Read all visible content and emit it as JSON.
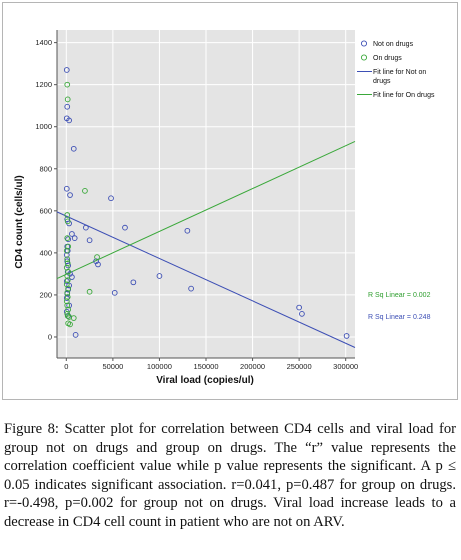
{
  "chart_data": {
    "type": "scatter",
    "xlabel": "Viral load (copies/ul)",
    "ylabel": "CD4 count (cells/ul)",
    "xlim": [
      -10000,
      310000
    ],
    "ylim": [
      -100,
      1460
    ],
    "xticks": [
      0,
      50000,
      100000,
      150000,
      200000,
      250000,
      300000
    ],
    "xtick_labels": [
      "0",
      "50000",
      "100000",
      "150000",
      "200000",
      "250000",
      "300000"
    ],
    "yticks": [
      0,
      200,
      400,
      600,
      800,
      1000,
      1200,
      1400
    ],
    "ytick_labels": [
      "0",
      "200",
      "400",
      "600",
      "800",
      "1000",
      "1200",
      "1400"
    ],
    "grid": true,
    "legend": "right",
    "series": [
      {
        "name": "Not on drugs",
        "color": "#3d4fb5",
        "points": [
          [
            500,
            1270
          ],
          [
            1000,
            1095
          ],
          [
            500,
            1040
          ],
          [
            3000,
            1030
          ],
          [
            8000,
            895
          ],
          [
            500,
            705
          ],
          [
            4000,
            675
          ],
          [
            1000,
            560
          ],
          [
            3000,
            540
          ],
          [
            6000,
            490
          ],
          [
            9000,
            470
          ],
          [
            2000,
            465
          ],
          [
            1000,
            430
          ],
          [
            1500,
            410
          ],
          [
            500,
            390
          ],
          [
            1000,
            360
          ],
          [
            2000,
            340
          ],
          [
            1500,
            310
          ],
          [
            4000,
            300
          ],
          [
            6000,
            285
          ],
          [
            500,
            265
          ],
          [
            3000,
            245
          ],
          [
            2000,
            225
          ],
          [
            1000,
            205
          ],
          [
            500,
            185
          ],
          [
            3000,
            150
          ],
          [
            500,
            120
          ],
          [
            2000,
            100
          ],
          [
            10000,
            10
          ],
          [
            21000,
            520
          ],
          [
            25000,
            460
          ],
          [
            32000,
            360
          ],
          [
            34000,
            345
          ],
          [
            48000,
            660
          ],
          [
            52000,
            210
          ],
          [
            63000,
            520
          ],
          [
            72000,
            260
          ],
          [
            100000,
            290
          ],
          [
            130000,
            505
          ],
          [
            134000,
            230
          ],
          [
            250000,
            140
          ],
          [
            253000,
            110
          ],
          [
            301000,
            5
          ]
        ],
        "fit_line": {
          "x": [
            -10000,
            310000
          ],
          "y": [
            595,
            -50
          ]
        },
        "r_sq_label": "R Sq Linear = 0.248"
      },
      {
        "name": "On drugs",
        "color": "#3aa83a",
        "points": [
          [
            1000,
            1200
          ],
          [
            1500,
            1130
          ],
          [
            1000,
            580
          ],
          [
            1500,
            550
          ],
          [
            1000,
            470
          ],
          [
            2000,
            430
          ],
          [
            500,
            410
          ],
          [
            1000,
            370
          ],
          [
            1500,
            350
          ],
          [
            500,
            330
          ],
          [
            2000,
            310
          ],
          [
            1000,
            290
          ],
          [
            1500,
            270
          ],
          [
            500,
            250
          ],
          [
            2000,
            230
          ],
          [
            1000,
            210
          ],
          [
            1500,
            190
          ],
          [
            500,
            170
          ],
          [
            1000,
            150
          ],
          [
            2000,
            130
          ],
          [
            1000,
            110
          ],
          [
            1500,
            100
          ],
          [
            3000,
            95
          ],
          [
            8000,
            90
          ],
          [
            2000,
            65
          ],
          [
            4000,
            60
          ],
          [
            20000,
            695
          ],
          [
            25000,
            215
          ],
          [
            33000,
            380
          ]
        ],
        "fit_line": {
          "x": [
            -10000,
            310000
          ],
          "y": [
            278,
            930
          ]
        },
        "r_sq_label": "R Sq Linear = 0.002"
      }
    ]
  },
  "legend": {
    "items": [
      {
        "label": "Not on drugs",
        "color": "#3d4fb5",
        "kind": "circle"
      },
      {
        "label": "On drugs",
        "color": "#3aa83a",
        "kind": "circle"
      },
      {
        "label": "Fit line for Not on drugs",
        "color": "#3d4fb5",
        "kind": "line"
      },
      {
        "label": "Fit line for On drugs",
        "color": "#3aa83a",
        "kind": "line"
      }
    ]
  },
  "caption": {
    "label": "Figure 8:",
    "text": "Scatter plot for correlation between CD4 cells and viral load for group not on drugs and group on drugs. The “r” value represents the correlation coefficient value while p value represents the significant. A p ≤ 0.05 indicates significant association. r=0.041, p=0.487 for group on drugs. r=-0.498, p=0.002 for group not on drugs. Viral load increase leads to a decrease in CD4 cell count in patient who are not on ARV."
  },
  "colors": {
    "plot_background": "#e4e4e4",
    "grid": "#ffffff",
    "axis": "#555555"
  }
}
